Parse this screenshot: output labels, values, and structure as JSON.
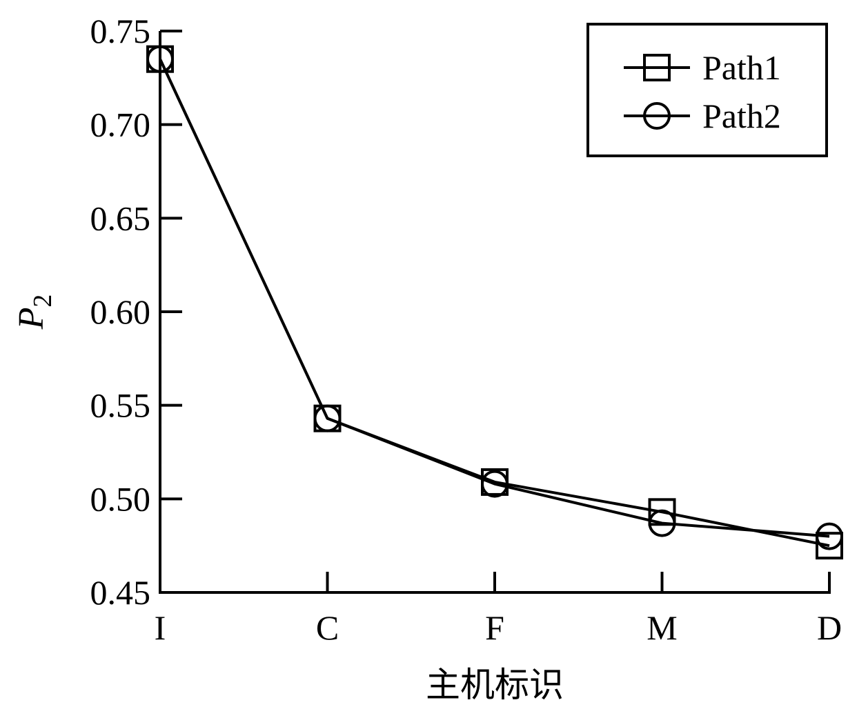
{
  "chart_data": {
    "type": "line",
    "categories": [
      "I",
      "C",
      "F",
      "M",
      "D"
    ],
    "series": [
      {
        "name": "Path1",
        "marker": "square",
        "values": [
          0.735,
          0.543,
          0.509,
          0.493,
          0.475
        ]
      },
      {
        "name": "Path2",
        "marker": "circle",
        "values": [
          0.735,
          0.543,
          0.508,
          0.487,
          0.48
        ]
      }
    ],
    "title": "",
    "xlabel": "主机标识",
    "ylabel": {
      "main": "P",
      "sub": "2"
    },
    "ylim": [
      0.45,
      0.75
    ],
    "yticks": [
      "0.45",
      "0.50",
      "0.55",
      "0.60",
      "0.65",
      "0.70",
      "0.75"
    ],
    "grid": false,
    "legend": "top-right",
    "colors": {
      "line": "#000000",
      "background": "#ffffff"
    }
  }
}
